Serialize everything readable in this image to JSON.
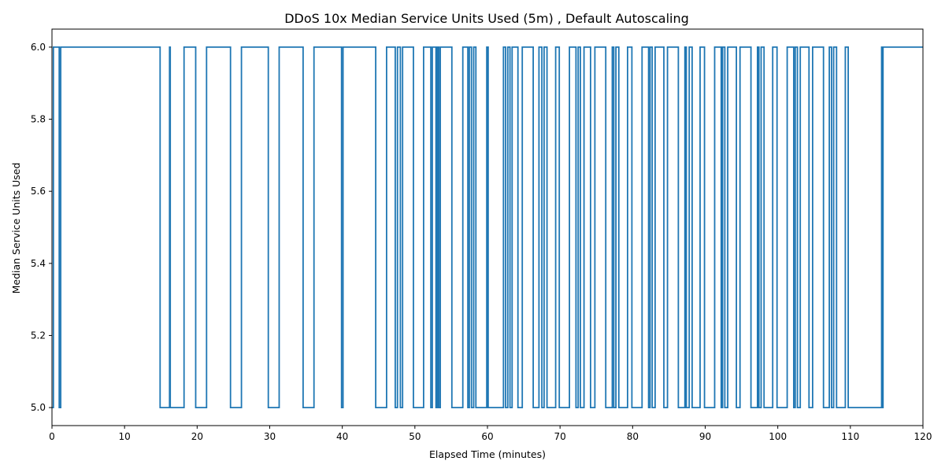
{
  "chart_data": {
    "type": "line",
    "title": "DDoS 10x Median Service Units Used (5m) , Default Autoscaling",
    "xlabel": "Elapsed Time (minutes)",
    "ylabel": "Median Service Units Used",
    "xlim": [
      0,
      120
    ],
    "ylim": [
      4.95,
      6.05
    ],
    "xticks": [
      0,
      10,
      20,
      30,
      40,
      50,
      60,
      70,
      80,
      90,
      100,
      110,
      120
    ],
    "xtick_labels": [
      "0",
      "10",
      "20",
      "30",
      "40",
      "50",
      "60",
      "70",
      "80",
      "90",
      "100",
      "110",
      "120"
    ],
    "yticks": [
      5.0,
      5.2,
      5.4,
      5.6,
      5.8,
      6.0
    ],
    "ytick_labels": [
      "5.0",
      "5.2",
      "5.4",
      "5.6",
      "5.8",
      "6.0"
    ],
    "grid": false,
    "series": [
      {
        "color": "#1f77b4",
        "start_value": 5.0,
        "x": [
          0.2,
          1.0,
          1.2,
          14.9,
          16.2,
          16.3,
          18.2,
          19.8,
          21.3,
          24.6,
          26.1,
          29.8,
          31.3,
          34.6,
          36.1,
          39.9,
          40.1,
          44.6,
          46.1,
          47.3,
          47.6,
          48.0,
          48.3,
          49.8,
          51.2,
          52.2,
          52.4,
          52.9,
          53.1,
          53.3,
          53.5,
          55.1,
          56.6,
          57.3,
          57.5,
          57.8,
          58.1,
          58.4,
          59.9,
          60.1,
          62.2,
          62.5,
          62.8,
          63.1,
          63.4,
          64.2,
          64.8,
          66.3,
          67.1,
          67.5,
          67.8,
          68.2,
          69.4,
          69.9,
          71.3,
          72.2,
          72.5,
          72.8,
          73.3,
          74.2,
          74.8,
          76.3,
          77.2,
          77.4,
          77.7,
          78.1,
          79.3,
          79.9,
          81.3,
          82.2,
          82.4,
          82.7,
          83.1,
          84.3,
          84.8,
          86.3,
          87.2,
          87.4,
          87.8,
          88.2,
          89.3,
          89.9,
          91.3,
          92.2,
          92.4,
          92.7,
          93.1,
          94.3,
          94.8,
          96.3,
          97.2,
          97.4,
          97.7,
          98.1,
          99.3,
          99.9,
          101.3,
          102.2,
          102.4,
          102.7,
          103.1,
          104.3,
          104.8,
          106.3,
          107.1,
          107.4,
          107.7,
          108.1,
          109.3,
          109.7,
          114.3,
          114.4,
          114.5
        ]
      }
    ]
  }
}
